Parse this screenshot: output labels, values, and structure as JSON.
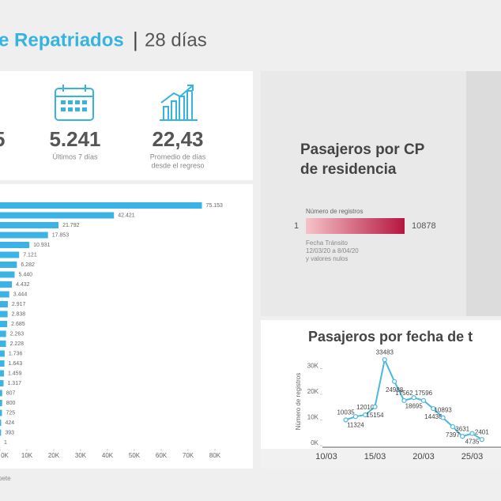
{
  "header": {
    "title": "e Repatriados",
    "separator": "|",
    "subtitle": "28 días"
  },
  "kpis": [
    {
      "value": "5"
    },
    {
      "value": "5.241",
      "label": [
        "Últimos 7 días"
      ]
    },
    {
      "value": "22,43",
      "label": [
        "Promedio de días",
        "desde el regreso"
      ]
    }
  ],
  "chart_data": [
    {
      "type": "bar",
      "orientation": "horizontal",
      "color": "#3bb4e5",
      "values": [
        75153,
        42421,
        21792,
        17853,
        10931,
        7121,
        6282,
        5440,
        4432,
        3444,
        2917,
        2838,
        2685,
        2263,
        2228,
        1736,
        1643,
        1459,
        1317,
        807,
        800,
        725,
        424,
        393,
        1
      ],
      "value_labels": [
        "75.153",
        "42.421",
        "21.792",
        "17.853",
        "10.931",
        "7.121",
        "6.282",
        "5.440",
        "4.432",
        "3.444",
        "2.917",
        "2.838",
        "2.685",
        "2.263",
        "2.228",
        "1.736",
        "1.643",
        "1.459",
        "1.317",
        "807",
        "800",
        "725",
        "424",
        "393",
        "1"
      ],
      "xlim": [
        0,
        80000
      ],
      "xticks": [
        {
          "value": 0,
          "label": "0K"
        },
        {
          "value": 10000,
          "label": "10K"
        },
        {
          "value": 20000,
          "label": "20K"
        },
        {
          "value": 30000,
          "label": "30K"
        },
        {
          "value": 40000,
          "label": "40K"
        },
        {
          "value": 50000,
          "label": "50K"
        },
        {
          "value": 60000,
          "label": "60K"
        },
        {
          "value": 70000,
          "label": "70K"
        },
        {
          "value": 80000,
          "label": "80K"
        }
      ]
    },
    {
      "type": "line",
      "title": "Pasajeros por fecha de t",
      "y_label": "Número de registros",
      "color": "#4cb8e0",
      "x": [
        "12/03",
        "13/03",
        "14/03",
        "15/03",
        "16/03",
        "17/03",
        "18/03",
        "19/03",
        "20/03",
        "21/03",
        "22/03",
        "23/03",
        "24/03",
        "25/03",
        "26/03"
      ],
      "values": [
        10035,
        11324,
        12010,
        15154,
        33483,
        24988,
        17562,
        18695,
        17596,
        14436,
        10893,
        7397,
        3631,
        4735,
        2401
      ],
      "xticks": [
        "10/03",
        "15/03",
        "20/03",
        "25/03"
      ],
      "ylim": [
        0,
        36000
      ],
      "yticks": [
        {
          "value": 0,
          "label": "0K"
        },
        {
          "value": 10000,
          "label": "10K"
        },
        {
          "value": 20000,
          "label": "20K"
        },
        {
          "value": 30000,
          "label": "30K"
        }
      ]
    }
  ],
  "map": {
    "title": [
      "Pasajeros por CP",
      "de residencia"
    ],
    "legend_title": "Número de registros",
    "min": "1",
    "max": "10878",
    "note": [
      "Fecha Tránsito",
      "12/03/20 a 8/04/20",
      "y valores nulos"
    ],
    "colors": [
      "#f6c3c9",
      "#b5163f"
    ]
  },
  "footer": "pete"
}
